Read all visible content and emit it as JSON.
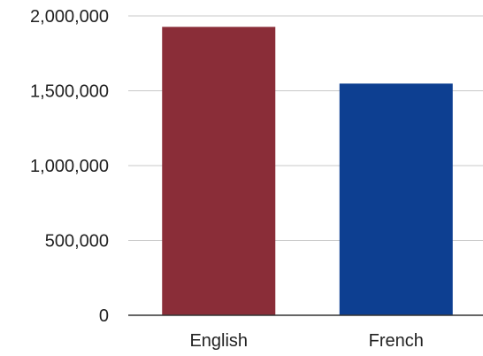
{
  "chart_data": {
    "type": "bar",
    "title": "",
    "xlabel": "",
    "ylabel": "",
    "categories": [
      "English",
      "French"
    ],
    "values": [
      1927000,
      1548000
    ],
    "colors": [
      "#8a2d38",
      "#0d3f91"
    ],
    "ylim": [
      0,
      2000000
    ],
    "yticks": [
      0,
      500000,
      1000000,
      1500000,
      2000000
    ],
    "ytick_labels": [
      "0",
      "500,000",
      "1,000,000",
      "1,500,000",
      "2,000,000"
    ],
    "grid": true,
    "legend": "none"
  }
}
